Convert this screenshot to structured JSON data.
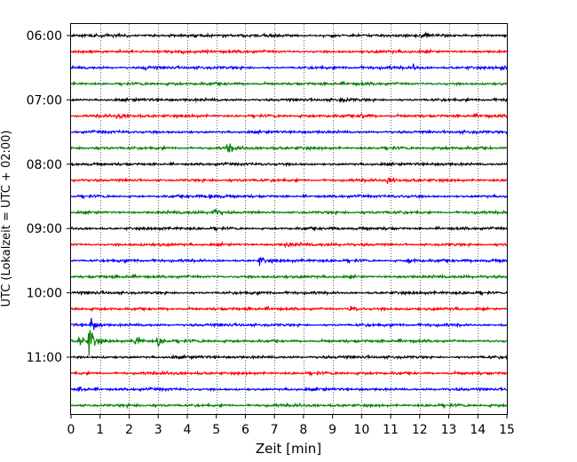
{
  "chart_data": {
    "type": "line",
    "title": "",
    "xlabel": "Zeit  [min]",
    "ylabel": "UTC (Lokalzeit = UTC + 02:00)",
    "xlim": [
      0,
      15
    ],
    "x_ticks": [
      0,
      1,
      2,
      3,
      4,
      5,
      6,
      7,
      8,
      9,
      10,
      11,
      12,
      13,
      14,
      15
    ],
    "x_tick_labels": [
      "0",
      "1",
      "2",
      "3",
      "4",
      "5",
      "6",
      "7",
      "8",
      "9",
      "10",
      "11",
      "12",
      "13",
      "14",
      "15"
    ],
    "y_tick_labels": [
      "06:00",
      "07:00",
      "08:00",
      "09:00",
      "10:00",
      "11:00"
    ],
    "grid": "vertical dotted",
    "legend": "none",
    "trace_minutes_per_row": 15,
    "row_colors": [
      "#000000",
      "#ff0000",
      "#0000ff",
      "#008000"
    ],
    "rows": [
      {
        "start": "06:00",
        "color": "#000000"
      },
      {
        "start": "06:15",
        "color": "#ff0000"
      },
      {
        "start": "06:30",
        "color": "#0000ff"
      },
      {
        "start": "06:45",
        "color": "#008000"
      },
      {
        "start": "07:00",
        "color": "#000000"
      },
      {
        "start": "07:15",
        "color": "#ff0000"
      },
      {
        "start": "07:30",
        "color": "#0000ff"
      },
      {
        "start": "07:45",
        "color": "#008000"
      },
      {
        "start": "08:00",
        "color": "#000000"
      },
      {
        "start": "08:15",
        "color": "#ff0000"
      },
      {
        "start": "08:30",
        "color": "#0000ff"
      },
      {
        "start": "08:45",
        "color": "#008000"
      },
      {
        "start": "09:00",
        "color": "#000000"
      },
      {
        "start": "09:15",
        "color": "#ff0000"
      },
      {
        "start": "09:30",
        "color": "#0000ff"
      },
      {
        "start": "09:45",
        "color": "#008000"
      },
      {
        "start": "10:00",
        "color": "#000000"
      },
      {
        "start": "10:15",
        "color": "#ff0000"
      },
      {
        "start": "10:30",
        "color": "#0000ff"
      },
      {
        "start": "10:45",
        "color": "#008000"
      },
      {
        "start": "11:00",
        "color": "#000000"
      },
      {
        "start": "11:15",
        "color": "#ff0000"
      },
      {
        "start": "11:30",
        "color": "#0000ff"
      },
      {
        "start": "11:45",
        "color": "#008000"
      }
    ],
    "events": [
      {
        "row": 0,
        "minute": 12.1,
        "amp": 0.5
      },
      {
        "row": 2,
        "minute": 2.5,
        "amp": 0.5
      },
      {
        "row": 2,
        "minute": 11.8,
        "amp": 0.6
      },
      {
        "row": 2,
        "minute": 14.8,
        "amp": 0.5
      },
      {
        "row": 4,
        "minute": 9.3,
        "amp": 0.4
      },
      {
        "row": 5,
        "minute": 1.6,
        "amp": 0.5
      },
      {
        "row": 5,
        "minute": 10.0,
        "amp": 0.6
      },
      {
        "row": 7,
        "minute": 5.4,
        "amp": 1.0
      },
      {
        "row": 9,
        "minute": 10.9,
        "amp": 0.7
      },
      {
        "row": 10,
        "minute": 4.8,
        "amp": 0.6
      },
      {
        "row": 11,
        "minute": 4.9,
        "amp": 0.9
      },
      {
        "row": 13,
        "minute": 7.4,
        "amp": 0.5
      },
      {
        "row": 14,
        "minute": 6.5,
        "amp": 0.8
      },
      {
        "row": 14,
        "minute": 11.6,
        "amp": 0.6
      },
      {
        "row": 17,
        "minute": 9.6,
        "amp": 0.7
      },
      {
        "row": 18,
        "minute": 0.7,
        "amp": 1.5
      },
      {
        "row": 19,
        "minute": 0.3,
        "amp": 1.2
      },
      {
        "row": 19,
        "minute": 0.65,
        "amp": 3.0
      },
      {
        "row": 19,
        "minute": 2.2,
        "amp": 1.4
      },
      {
        "row": 19,
        "minute": 3.0,
        "amp": 1.0
      },
      {
        "row": 22,
        "minute": 0.3,
        "amp": 0.5
      }
    ]
  }
}
